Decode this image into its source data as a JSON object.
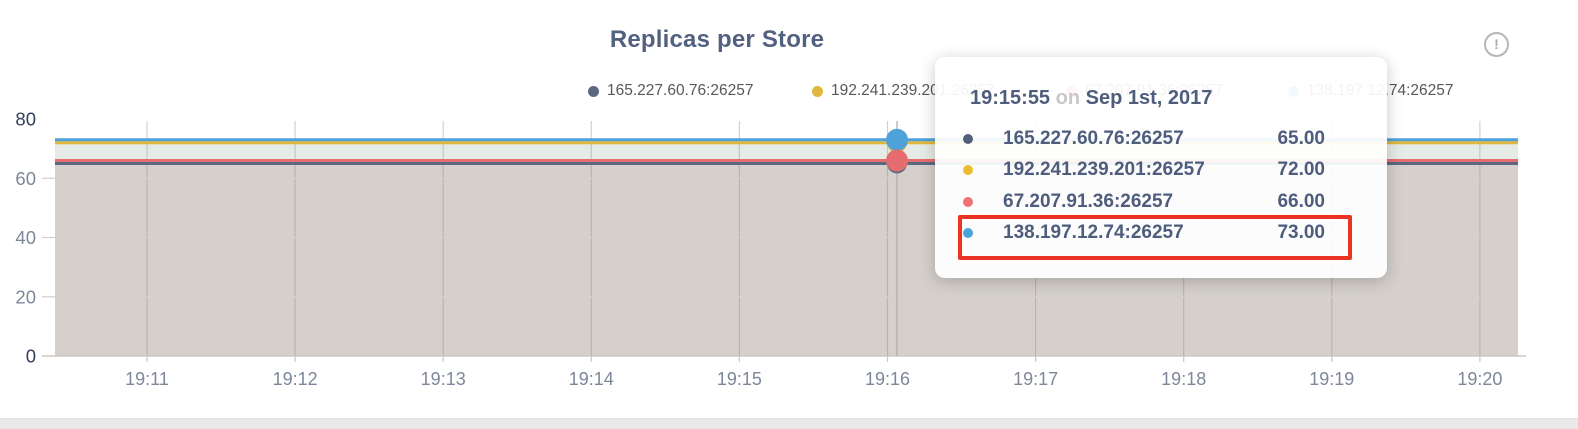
{
  "header": {
    "title": "Replicas per Store",
    "info_icon": "!",
    "info_icon_name": "exclamation-circle-icon"
  },
  "chart_data": {
    "type": "line",
    "title": "Replicas per Store",
    "xlabel": "",
    "ylabel": "",
    "x_ticks": [
      "19:11",
      "19:12",
      "19:13",
      "19:14",
      "19:15",
      "19:16",
      "19:17",
      "19:18",
      "19:19",
      "19:20"
    ],
    "y_ticks": [
      0,
      20,
      40,
      60,
      80
    ],
    "ylim": [
      0,
      80
    ],
    "grid": true,
    "area": true,
    "legend_position": "top",
    "series": [
      {
        "name": "165.227.60.76:26257",
        "color": "#5c6880",
        "value": 65
      },
      {
        "name": "192.241.239.201:26257",
        "color": "#e0b73c",
        "value": 72
      },
      {
        "name": "67.207.91.36:26257",
        "color": "#e66d6f",
        "value": 66
      },
      {
        "name": "138.197.12.74:26257",
        "color": "#4fa2d8",
        "value": 73
      }
    ],
    "hover_x_label": "19:16"
  },
  "tooltip": {
    "time": "19:15:55",
    "conj": "on",
    "date": "Sep 1st, 2017",
    "rows": [
      {
        "name": "165.227.60.76:26257",
        "value": "65.00",
        "color": "#53607c"
      },
      {
        "name": "192.241.239.201:26257",
        "value": "72.00",
        "color": "#ecbc33"
      },
      {
        "name": "67.207.91.36:26257",
        "value": "66.00",
        "color": "#f07374"
      },
      {
        "name": "138.197.12.74:26257",
        "value": "73.00",
        "color": "#4aa4dc"
      }
    ],
    "highlighted_row": 3,
    "highlight_color": "#ea3323"
  },
  "colors": {
    "title_text": "#52617f",
    "axis_label_dark": "#30405e",
    "axis_label_mid": "#7d8799",
    "legend_text": "#585858",
    "grid_line": "#d6d0cb",
    "axis_line": "#cfc7c1",
    "guide_line": "#b0b0b0",
    "fill_opacity": 0.12
  }
}
